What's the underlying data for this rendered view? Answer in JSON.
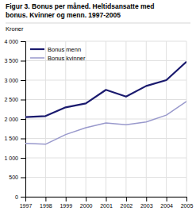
{
  "chart_data": {
    "type": "line",
    "title": [
      "Figur 3. Bonus per måned. Heltidsansatte med",
      "bonus. Kvinner og menn. 1997-2005"
    ],
    "ylabel": "Kroner",
    "x": [
      1997,
      1998,
      1999,
      2000,
      2001,
      2002,
      2003,
      2004,
      2005
    ],
    "series": [
      {
        "name": "Bonus menn",
        "color": "#1a1a6e",
        "values": [
          2050,
          2075,
          2300,
          2400,
          2750,
          2575,
          2850,
          3000,
          3475
        ]
      },
      {
        "name": "Bonus kvinner",
        "color": "#9999CC",
        "values": [
          1375,
          1350,
          1600,
          1775,
          1900,
          1850,
          1925,
          2100,
          2450
        ]
      }
    ],
    "xlim": [
      1997,
      2005
    ],
    "xticks": [
      1997,
      1998,
      1999,
      2000,
      2001,
      2002,
      2003,
      2004,
      2005
    ],
    "ylim": [
      0,
      4000
    ],
    "yticks": [
      0,
      500,
      {
        "value": 1000,
        "label": "1 000"
      },
      {
        "value": 1500,
        "label": "1 500"
      },
      {
        "value": 2000,
        "label": "2 000"
      },
      {
        "value": 2500,
        "label": "2 500"
      },
      {
        "value": 3000,
        "label": "3 000"
      },
      {
        "value": 3500,
        "label": "3 500"
      },
      {
        "value": 4000,
        "label": "4 000"
      }
    ],
    "grid": true,
    "legend": "upper-left"
  }
}
